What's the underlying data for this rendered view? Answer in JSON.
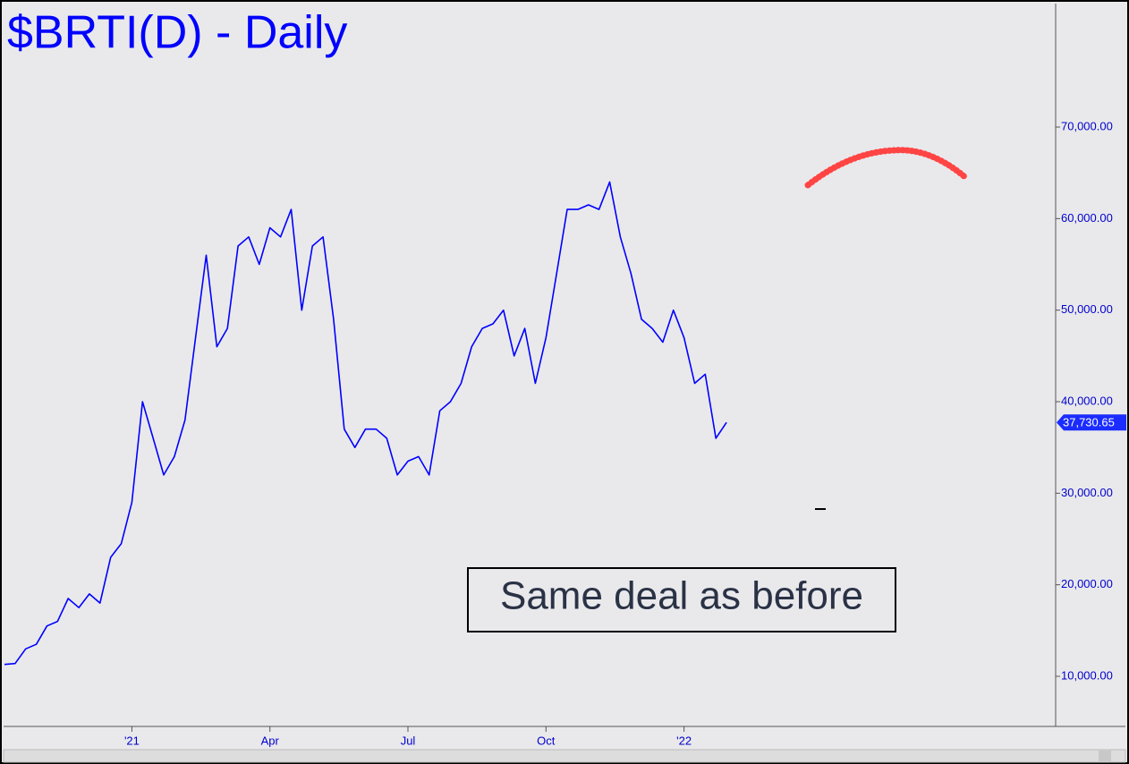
{
  "chart_data": {
    "type": "line",
    "title": "$BRTI(D) - Daily",
    "annotation": "Same deal as before",
    "color": "#0000ff",
    "categories": [
      null,
      null,
      null,
      null,
      null,
      null,
      null,
      null,
      null,
      null,
      null,
      null,
      "'21",
      null,
      null,
      null,
      null,
      null,
      null,
      null,
      null,
      null,
      null,
      null,
      null,
      "Apr",
      null,
      null,
      null,
      null,
      null,
      null,
      null,
      null,
      null,
      null,
      null,
      null,
      "Jul",
      null,
      null,
      null,
      null,
      null,
      null,
      null,
      null,
      null,
      null,
      null,
      null,
      "Oct",
      null,
      null,
      null,
      null,
      null,
      null,
      null,
      null,
      null,
      null,
      null,
      null,
      "'22",
      null,
      null,
      null,
      null,
      null,
      null,
      null,
      null,
      null,
      null,
      null,
      null,
      null,
      null,
      null,
      null,
      null,
      null,
      null,
      null,
      null,
      null,
      null,
      null,
      null,
      null,
      null,
      null,
      null,
      null,
      null,
      null,
      null,
      null,
      null
    ],
    "values": [
      11300,
      11400,
      13000,
      13500,
      15500,
      16000,
      18500,
      17500,
      19000,
      18000,
      23000,
      24500,
      29000,
      40000,
      36000,
      32000,
      34000,
      38000,
      47000,
      56000,
      46000,
      48000,
      57000,
      58000,
      55000,
      59000,
      58000,
      61000,
      50000,
      57000,
      58000,
      49000,
      37000,
      35000,
      37000,
      37000,
      36000,
      32000,
      33500,
      34000,
      32000,
      39000,
      40000,
      42000,
      46000,
      48000,
      48500,
      50000,
      45000,
      48000,
      42000,
      47000,
      54000,
      61000,
      61000,
      61500,
      61000,
      64000,
      58000,
      54000,
      49000,
      48000,
      46500,
      50000,
      47000,
      42000,
      43000,
      36000,
      37730.65,
      null,
      null,
      null,
      null,
      null,
      null,
      null,
      null,
      null,
      null,
      null,
      null,
      null,
      null,
      null,
      null,
      null,
      null,
      null,
      null,
      null,
      null,
      null,
      null,
      null,
      null,
      null,
      null,
      null,
      null,
      null
    ],
    "value_labels": [
      null,
      null,
      null,
      null,
      null,
      null,
      null,
      null,
      null,
      null,
      null,
      null,
      null,
      null,
      null,
      null,
      null,
      null,
      null,
      null,
      null,
      null,
      null,
      null,
      null,
      null,
      null,
      null,
      null,
      null,
      null,
      null,
      null,
      null,
      null,
      null,
      null,
      null,
      null,
      null,
      null,
      null,
      null,
      null,
      null,
      null,
      null,
      null,
      null,
      null,
      null,
      null,
      null,
      null,
      null,
      null,
      null,
      null,
      null,
      null,
      null,
      null,
      null,
      null,
      null,
      null,
      null,
      null,
      "37,730.65",
      null,
      null,
      null,
      null,
      null,
      null,
      null,
      null,
      null,
      null,
      null,
      null,
      null,
      null,
      null,
      null,
      null,
      null,
      null,
      null,
      null,
      null,
      null,
      null,
      null,
      null,
      null,
      null,
      null,
      null,
      null
    ],
    "ylim": [
      4526,
      83390
    ],
    "yticks": [
      {
        "value": 10000,
        "label": "10,000.00"
      },
      {
        "value": 20000,
        "label": "20,000.00"
      },
      {
        "value": 30000,
        "label": "30,000.00"
      },
      {
        "value": 40000,
        "label": "40,000.00"
      },
      {
        "value": 50000,
        "label": "50,000.00"
      },
      {
        "value": 60000,
        "label": "60,000.00"
      },
      {
        "value": 70000,
        "label": "70,000.00"
      }
    ],
    "grid": false
  }
}
